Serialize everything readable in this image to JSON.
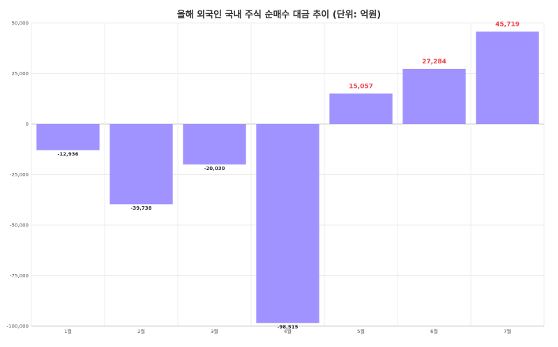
{
  "chart_data": {
    "type": "bar",
    "title": "올해 외국인 국내 주식 순매수 대금 추이 (단위: 억원)",
    "xlabel": "",
    "ylabel": "",
    "categories": [
      "1월",
      "2월",
      "3월",
      "4월",
      "5월",
      "6월",
      "7월"
    ],
    "values": [
      -12936,
      -39738,
      -20030,
      -98515,
      15057,
      27284,
      45719
    ],
    "data_labels": [
      "-12,936",
      "-39,738",
      "-20,030",
      "-98,515",
      "15,057",
      "27,284",
      "45,719"
    ],
    "ylim": [
      -100000,
      50000
    ],
    "yticks": [
      50000,
      25000,
      0,
      -25000,
      -50000,
      -75000,
      -100000
    ],
    "ytick_labels": [
      "50,000",
      "25,000",
      "0",
      "-25,000",
      "-50,000",
      "-75,000",
      "-100,000"
    ],
    "grid": true,
    "bar_color": "#a193ff",
    "positive_label_color": "#f0434a",
    "negative_label_color": "#333333"
  }
}
